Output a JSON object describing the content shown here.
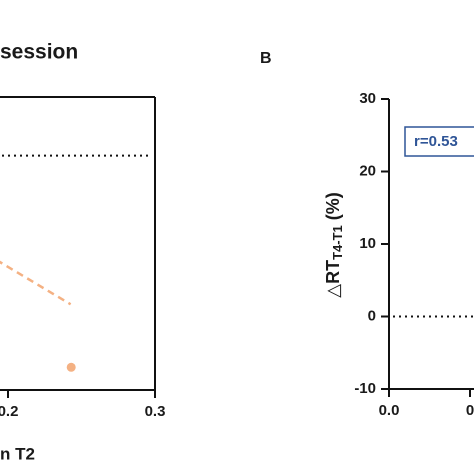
{
  "chart_data": [
    {
      "type": "scatter",
      "title": "session",
      "x_label": "n T2",
      "xlim": [
        0,
        0.3
      ],
      "ylim": [
        -10,
        30
      ],
      "xticks": [
        0.2,
        0.3
      ],
      "color": "#f4b183",
      "x": [
        0.243
      ],
      "values": [
        -6.9
      ],
      "fit_line": {
        "x": [
          0.15,
          0.2426
        ],
        "y": [
          12.8,
          1.7
        ]
      },
      "reference_y": 22
    },
    {
      "type": "scatter",
      "panel_label": "B",
      "y_label": {
        "main": "△RT",
        "sub": "T4-T1",
        "unit": "(%)"
      },
      "xlim": [
        0,
        0.3
      ],
      "ylim": [
        -10,
        30
      ],
      "xticks": [
        {
          "value": 0,
          "label": "0.0"
        },
        {
          "value": 0.1,
          "label": "0"
        }
      ],
      "yticks": [
        30,
        20,
        10,
        0,
        -10
      ],
      "reference_y": 0,
      "annotation": "r=0.53",
      "annotation_color": "#2f5597"
    }
  ]
}
